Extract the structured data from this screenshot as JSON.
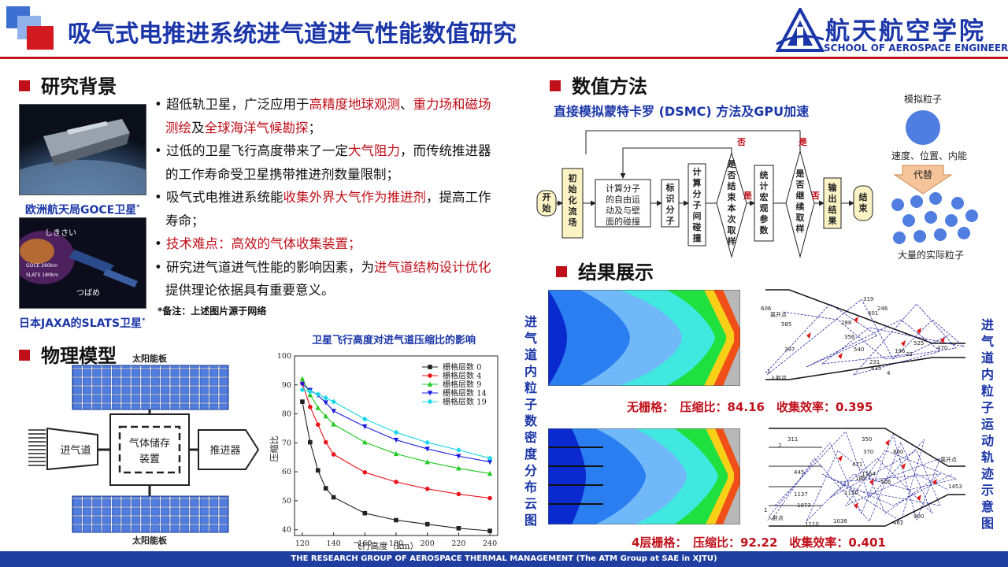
{
  "header": {
    "title": "吸气式电推进系统进气道进气性能数值研究",
    "logo_cn": "航天航空学院",
    "logo_en": "SCHOOL OF AEROSPACE ENGINEERING"
  },
  "sections": {
    "background": "研究背景",
    "method": "数值方法",
    "model": "物理模型",
    "results": "结果展示"
  },
  "background": {
    "caption_goce": "欧洲航天局GOCE卫星",
    "caption_goce_sup": "*",
    "caption_slats": "日本JAXA的SLATS卫星",
    "caption_slats_sup": "*",
    "photo2_labels": [
      "しきさい",
      "GOCE 260km",
      "SLATS 180km",
      "つばめ"
    ],
    "bullets": [
      {
        "parts": [
          {
            "t": "超低轨卫星，广泛应用于",
            "r": false
          },
          {
            "t": "高精度地球观测",
            "r": true
          },
          {
            "t": "、",
            "r": false
          },
          {
            "t": "重力场和磁场测绘",
            "r": true
          },
          {
            "t": "及",
            "r": false
          },
          {
            "t": "全球海洋气候勘探",
            "r": true
          },
          {
            "t": "；",
            "r": false
          }
        ]
      },
      {
        "parts": [
          {
            "t": "过低的卫星飞行高度带来了一定",
            "r": false
          },
          {
            "t": "大气阻力",
            "r": true
          },
          {
            "t": "，而传统推进器的工作寿命受卫星携带推进剂数量限制；",
            "r": false
          }
        ]
      },
      {
        "parts": [
          {
            "t": "吸气式电推进系统能",
            "r": false
          },
          {
            "t": "收集外界大气作为推进剂",
            "r": true
          },
          {
            "t": "，提高工作寿命；",
            "r": false
          }
        ]
      },
      {
        "parts": [
          {
            "t": "技术难点：高效的气体收集装置；",
            "r": true
          }
        ]
      },
      {
        "parts": [
          {
            "t": "研究进气道进气性能的影响因素，为",
            "r": false
          },
          {
            "t": "进气道结构设计优化",
            "r": true
          },
          {
            "t": "提供理论依据具有重要意义。",
            "r": false
          }
        ]
      }
    ],
    "note": "*备注：上述图片源于网络"
  },
  "model": {
    "solar_top": "太阳能板",
    "solar_bottom": "太阳能板",
    "inlet": "进气道",
    "storage_1": "气体储存",
    "storage_2": "装置",
    "thruster": "推进器"
  },
  "chart_data": {
    "type": "line",
    "title": "卫星飞行高度对进气道压缩比的影响",
    "xlabel": "飞行高度（km）",
    "ylabel": "压缩比",
    "xlim": [
      115,
      245
    ],
    "ylim": [
      38,
      100
    ],
    "xticks": [
      120,
      140,
      160,
      180,
      200,
      220,
      240
    ],
    "yticks": [
      40,
      50,
      60,
      70,
      80,
      90,
      100
    ],
    "legend_position": "top-right",
    "x": [
      120,
      125,
      130,
      135,
      140,
      160,
      180,
      200,
      220,
      240
    ],
    "series": [
      {
        "name": "栅格层数 0",
        "color": "#222222",
        "marker": "square",
        "values": [
          84.2,
          70.2,
          60.5,
          54.3,
          51.2,
          45.7,
          43.3,
          41.9,
          40.5,
          39.6
        ]
      },
      {
        "name": "栅格层数 4",
        "color": "#e8141c",
        "marker": "circle",
        "values": [
          90.5,
          82.4,
          76.3,
          70.2,
          66.0,
          59.8,
          56.5,
          54.1,
          52.3,
          50.9
        ]
      },
      {
        "name": "栅格层数 9",
        "color": "#1ec81e",
        "marker": "triangle",
        "values": [
          92.1,
          86.6,
          82.1,
          79.2,
          76.4,
          70.2,
          66.2,
          63.4,
          61.2,
          59.4
        ]
      },
      {
        "name": "栅格层数 14",
        "color": "#1a1ae0",
        "marker": "tri-down",
        "values": [
          90.3,
          88.2,
          86.4,
          83.9,
          81.0,
          75.6,
          71.0,
          67.9,
          65.4,
          63.4
        ]
      },
      {
        "name": "栅格层数 19",
        "color": "#19d8e8",
        "marker": "diamond",
        "values": [
          88.3,
          87.7,
          86.8,
          85.5,
          84.2,
          78.2,
          73.6,
          70.1,
          67.5,
          64.7
        ]
      }
    ]
  },
  "method": {
    "subtitle": "直接模拟蒙特卡罗 (DSMC) 方法及GPU加速",
    "flow": {
      "start": "开始",
      "init": "初始化流场",
      "compute_1": "计算分子",
      "compute_2": "的自由运",
      "compute_3": "动及与壁",
      "compute_4": "面的碰撞",
      "mark": "标识分子",
      "collide": "计算分子间碰撞",
      "sample_end": "是否结束本次取样",
      "stats": "统计宏观参数",
      "continue": "是否继续取样",
      "output": "输出结果",
      "end": "结束",
      "yes": "是",
      "no": "否"
    },
    "particles": {
      "sim": "模拟粒子",
      "props": "速度、位置、内能",
      "replace": "代替",
      "real": "大量的实际粒子"
    }
  },
  "results": {
    "left_vertical": "进气道内粒子数密度分布云图",
    "right_vertical": "进气道内粒子运动轨迹示意图",
    "case1": "无栅格：　压缩比：84.16　收集效率：0.395",
    "case2": "4层栅格：　压缩比：92.22　收集效率：0.401",
    "traj1_labels": [
      "606",
      "离开点",
      "319",
      "401",
      "246",
      "585",
      "288",
      "356",
      "397",
      "540",
      "196",
      "525",
      "470",
      "231",
      "22",
      "635",
      "4",
      "1",
      "入射点"
    ],
    "traj2_labels": [
      "311",
      "2",
      "350",
      "370",
      "800",
      "445",
      "471",
      "185",
      "1164",
      "506",
      "1150",
      "1137",
      "1073",
      "1038",
      "1110",
      "900",
      "462",
      "1453",
      "离开点",
      "1",
      "入射点"
    ]
  },
  "footer": "THE RESEARCH GROUP OF AEROSPACE THERMAL MANAGEMENT  (The ATM Group at SAE in XJTU)"
}
